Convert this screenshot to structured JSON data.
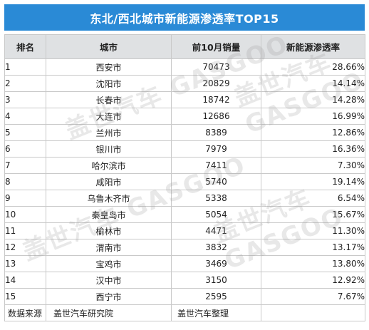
{
  "title": "东北/西北城市新能源渗透率TOP15",
  "table": {
    "headers": [
      "排名",
      "城市",
      "前10月销量",
      "新能源渗透率"
    ],
    "rows": [
      {
        "rank": "1",
        "city": "西安市",
        "sales": "70473",
        "rate": "28.66%"
      },
      {
        "rank": "2",
        "city": "沈阳市",
        "sales": "20829",
        "rate": "14.14%"
      },
      {
        "rank": "3",
        "city": "长春市",
        "sales": "18742",
        "rate": "14.28%"
      },
      {
        "rank": "4",
        "city": "大连市",
        "sales": "12686",
        "rate": "16.99%"
      },
      {
        "rank": "5",
        "city": "兰州市",
        "sales": "8389",
        "rate": "12.86%"
      },
      {
        "rank": "6",
        "city": "银川市",
        "sales": "7979",
        "rate": "16.36%"
      },
      {
        "rank": "7",
        "city": "哈尔滨市",
        "sales": "7411",
        "rate": "7.30%"
      },
      {
        "rank": "8",
        "city": "咸阳市",
        "sales": "5740",
        "rate": "19.14%"
      },
      {
        "rank": "9",
        "city": "乌鲁木齐市",
        "sales": "5338",
        "rate": "6.54%"
      },
      {
        "rank": "10",
        "city": "秦皇岛市",
        "sales": "5054",
        "rate": "15.67%"
      },
      {
        "rank": "11",
        "city": "榆林市",
        "sales": "4471",
        "rate": "11.30%"
      },
      {
        "rank": "12",
        "city": "渭南市",
        "sales": "3832",
        "rate": "13.17%"
      },
      {
        "rank": "13",
        "city": "宝鸡市",
        "sales": "3469",
        "rate": "13.80%"
      },
      {
        "rank": "14",
        "city": "汉中市",
        "sales": "3150",
        "rate": "12.92%"
      },
      {
        "rank": "15",
        "city": "西宁市",
        "sales": "2595",
        "rate": "7.67%"
      }
    ]
  },
  "footer": {
    "source_label": "数据来源",
    "source_org": "盖世汽车研究院",
    "compiled_by": "盖世汽车整理"
  },
  "watermark": "盖世汽车 GASGOO",
  "colors": {
    "title_bg": "#2a8ad6",
    "header_bg": "#dfe1e3",
    "border": "#c9c9c9"
  }
}
